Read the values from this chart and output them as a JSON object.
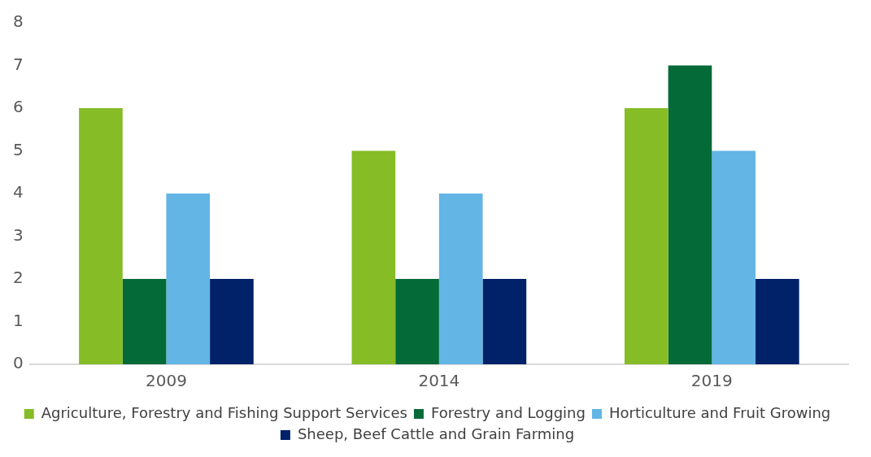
{
  "chart_data": {
    "type": "bar",
    "categories": [
      "2009",
      "2014",
      "2019"
    ],
    "series": [
      {
        "name": "Agriculture, Forestry and Fishing Support Services",
        "color": "#86bc25",
        "values": [
          6,
          5,
          6
        ]
      },
      {
        "name": "Forestry and Logging",
        "color": "#046a38",
        "values": [
          2,
          2,
          7
        ]
      },
      {
        "name": "Horticulture and Fruit Growing",
        "color": "#62b5e5",
        "values": [
          4,
          4,
          5
        ]
      },
      {
        "name": "Sheep, Beef Cattle and Grain Farming",
        "color": "#012169",
        "values": [
          2,
          2,
          2
        ]
      }
    ],
    "ylim": [
      0,
      8
    ],
    "yticks": [
      0,
      1,
      2,
      3,
      4,
      5,
      6,
      7,
      8
    ],
    "grid": false,
    "legend": "bottom"
  }
}
